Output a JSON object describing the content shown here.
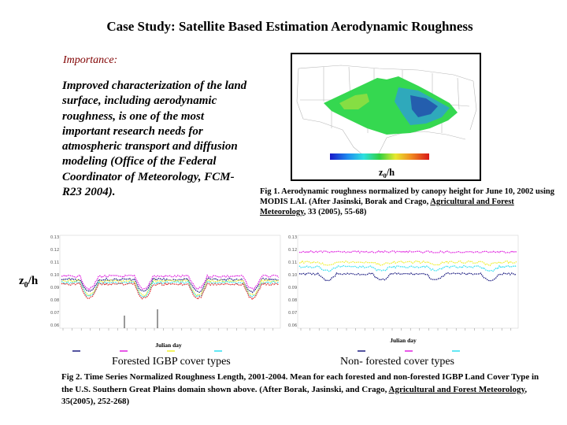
{
  "title": "Case Study:  Satellite Based Estimation Aerodynamic Roughness",
  "importance": {
    "label": "Importance:",
    "body": "Improved characterization of the land surface, including aerodynamic roughness, is one of the most important research needs for atmospheric transport and diffusion modeling  (Office of the Federal Coordinator of Meteorology, FCM-R23 2004)."
  },
  "map": {
    "label_main": "z",
    "label_sub": "0",
    "label_tail": "/h"
  },
  "fig1": {
    "caption_pre": "Fig 1. Aerodynamic roughness normalized by canopy height for June 10, 2002 using MODIS LAI.  (After Jasinski, Borak and Crago, ",
    "journal": "Agricultural and Forest Meteorology",
    "caption_post": ", 33 (2005), 55-68)"
  },
  "side_label": {
    "main": "z",
    "sub": "0",
    "tail": "/h"
  },
  "charts": {
    "xlabel": "Julian day",
    "forested": {
      "caption": "Forested IGBP cover types"
    },
    "nonforested": {
      "caption": "Non- forested cover types"
    }
  },
  "fig2": {
    "caption_pre": "Fig 2. Time Series Normalized Roughness Length, 2001-2004. Mean for each forested and non-forested IGBP Land Cover Type in the U.S. Southern Great Plains domain shown above. (After Borak, Jasinski, and Crago, ",
    "journal": "Agricultural and Forest Meteorology",
    "caption_post": ", 35(2005), 252-268)"
  },
  "colors": {
    "importance_label": "#800000",
    "series_magenta": "#e020e0",
    "series_navy": "#1a1a80",
    "series_yellow": "#f0f030",
    "series_cyan": "#30e0f0",
    "series_red": "#e03030"
  }
}
